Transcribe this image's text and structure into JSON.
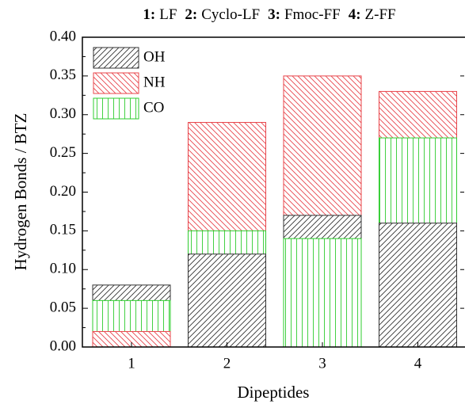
{
  "chart_data": {
    "type": "overlapping-bar",
    "title_parts": [
      {
        "number": "1:",
        "name": "LF"
      },
      {
        "number": "2:",
        "name": "Cyclo-LF"
      },
      {
        "number": "3:",
        "name": "Fmoc-FF"
      },
      {
        "number": "4:",
        "name": "Z-FF"
      }
    ],
    "x_label": "Dipeptides",
    "y_label": "Hydrogen Bonds / BTZ",
    "categories": [
      "1",
      "2",
      "3",
      "4"
    ],
    "series": [
      {
        "name": "OH",
        "color": "#333333",
        "hatch": "forward-diagonal",
        "values": [
          0.08,
          0.12,
          0.17,
          0.16
        ]
      },
      {
        "name": "NH",
        "color": "#e8444a",
        "hatch": "back-diagonal",
        "values": [
          0.02,
          0.29,
          0.35,
          0.33
        ]
      },
      {
        "name": "CO",
        "color": "#2ecc2e",
        "hatch": "vertical",
        "values": [
          0.06,
          0.15,
          0.14,
          0.27
        ]
      }
    ],
    "ylim": [
      0,
      0.4
    ],
    "yticks": [
      {
        "value": 0,
        "label": "0.00"
      },
      {
        "value": 0.05,
        "label": "0.05"
      },
      {
        "value": 0.1,
        "label": "0.10"
      },
      {
        "value": 0.15,
        "label": "0.15"
      },
      {
        "value": 0.2,
        "label": "0.20"
      },
      {
        "value": 0.25,
        "label": "0.25"
      },
      {
        "value": 0.3,
        "label": "0.30"
      },
      {
        "value": 0.35,
        "label": "0.35"
      },
      {
        "value": 0.4,
        "label": "0.40"
      }
    ],
    "legend": "upper left"
  }
}
